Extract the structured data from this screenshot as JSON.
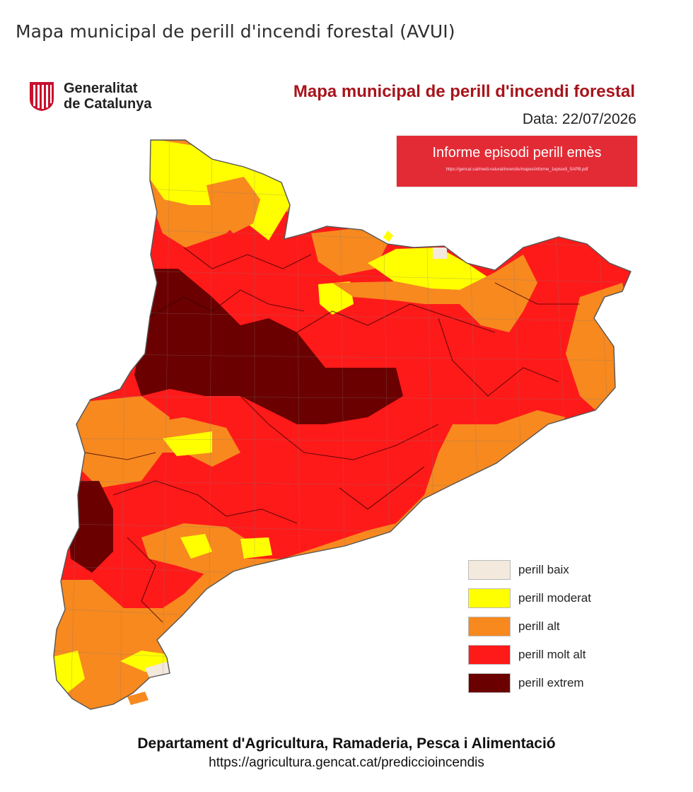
{
  "page": {
    "title": "Mapa municipal de perill d'incendi forestal (AVUI)"
  },
  "logo": {
    "line1": "Generalitat",
    "line2": "de Catalunya"
  },
  "map": {
    "title": "Mapa municipal de perill d'incendi forestal",
    "date": "Data: 22/07/2026",
    "episode": {
      "label": "Informe episodi perill emès",
      "url": "https://gencat.cat/medi-natural/incendis/mapes/informe_1episodi_SAPB.pdf"
    }
  },
  "legend": [
    {
      "label": "perill baix",
      "color": "#f3e9dc"
    },
    {
      "label": "perill moderat",
      "color": "#ffff00"
    },
    {
      "label": "perill alt",
      "color": "#f7891f"
    },
    {
      "label": "perill molt alt",
      "color": "#ff1a1a"
    },
    {
      "label": "perill extrem",
      "color": "#6b0000"
    }
  ],
  "footer": {
    "department": "Departament d'Agricultura, Ramaderia, Pesca i Alimentació",
    "url": "https://agricultura.gencat.cat/prediccioincendis"
  }
}
